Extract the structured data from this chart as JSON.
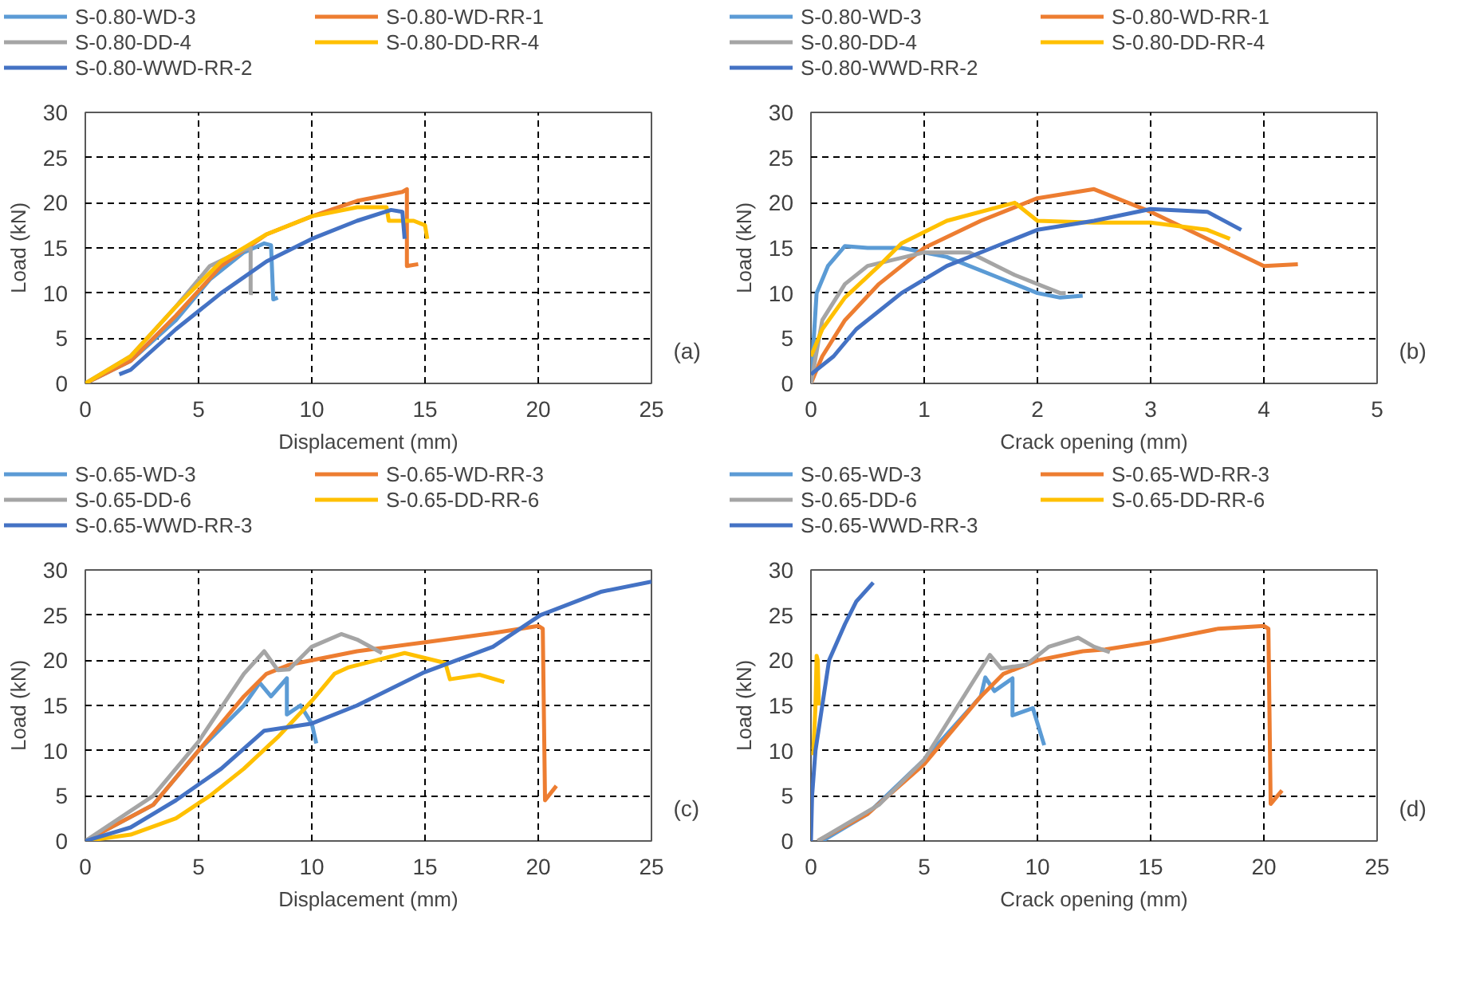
{
  "chart_data": [
    {
      "type": "line",
      "xlabel": "Displacement (mm)",
      "ylabel": "Load (kN)",
      "xlim": [
        0,
        25
      ],
      "ylim": [
        0,
        30
      ],
      "xticks": [
        0,
        5,
        10,
        15,
        20,
        25
      ],
      "yticks": [
        0,
        5,
        10,
        15,
        20,
        25,
        30
      ],
      "grid": true,
      "legend": "top",
      "annotations": [
        "(a)"
      ],
      "series": [
        {
          "name": "S-0.80-WD-3",
          "color": "#5b9bd5",
          "x": [
            0,
            2,
            4,
            5.5,
            7,
            7.9,
            8.2,
            8.3,
            8.5
          ],
          "values": [
            0,
            2.5,
            7,
            11.5,
            14.5,
            15.5,
            15.3,
            9.3,
            9.5
          ]
        },
        {
          "name": "S-0.80-WD-RR-1",
          "color": "#ed7d31",
          "x": [
            0,
            2,
            4,
            6,
            8,
            10,
            12,
            14,
            14.2,
            14.2,
            14.7
          ],
          "values": [
            0,
            2.5,
            7.5,
            13,
            16.5,
            18.5,
            20.2,
            21.2,
            21.5,
            13,
            13.2
          ]
        },
        {
          "name": "S-0.80-DD-4",
          "color": "#a5a5a5",
          "x": [
            0,
            2,
            4,
            5.5,
            7,
            7.3,
            7.3,
            7.4
          ],
          "values": [
            0,
            3,
            8.5,
            13,
            14.8,
            15,
            10,
            10
          ]
        },
        {
          "name": "S-0.80-DD-RR-4",
          "color": "#ffc000",
          "x": [
            0,
            2,
            4,
            6,
            8,
            10,
            12,
            13.3,
            13.4,
            14.5,
            15,
            15.1
          ],
          "values": [
            0,
            3,
            8.5,
            13.5,
            16.5,
            18.5,
            19.5,
            19.5,
            18,
            18,
            17.5,
            16
          ]
        },
        {
          "name": "S-0.80-WWD-RR-2",
          "color": "#4472c4",
          "x": [
            1.5,
            2,
            4,
            6,
            8,
            10,
            12,
            13.5,
            14,
            14.1
          ],
          "values": [
            1,
            1.5,
            6,
            10,
            13.5,
            16,
            18,
            19.2,
            19,
            16
          ]
        }
      ]
    },
    {
      "type": "line",
      "xlabel": "Crack opening (mm)",
      "ylabel": "Load (kN)",
      "xlim": [
        0,
        5
      ],
      "ylim": [
        0,
        30
      ],
      "xticks": [
        0,
        1,
        2,
        3,
        4,
        5
      ],
      "yticks": [
        0,
        5,
        10,
        15,
        20,
        25,
        30
      ],
      "grid": true,
      "legend": "top",
      "annotations": [
        "(b)"
      ],
      "series": [
        {
          "name": "S-0.80-WD-3",
          "color": "#5b9bd5",
          "x": [
            0,
            0.05,
            0.15,
            0.3,
            0.5,
            0.8,
            1.2,
            1.6,
            2,
            2.2,
            2.4
          ],
          "values": [
            0,
            10,
            13,
            15.2,
            15,
            15,
            14,
            12,
            10,
            9.5,
            9.7
          ]
        },
        {
          "name": "S-0.80-WD-RR-1",
          "color": "#ed7d31",
          "x": [
            0,
            0.1,
            0.3,
            0.6,
            1,
            1.5,
            2,
            2.5,
            3,
            3.5,
            4,
            4.3
          ],
          "values": [
            0,
            3,
            7,
            11,
            15,
            18,
            20.5,
            21.5,
            19,
            16,
            13,
            13.2
          ]
        },
        {
          "name": "S-0.80-DD-4",
          "color": "#a5a5a5",
          "x": [
            0,
            0.1,
            0.3,
            0.5,
            1,
            1.4,
            1.8,
            2.2,
            2.25
          ],
          "values": [
            0,
            7,
            11,
            13,
            14.5,
            14.5,
            12,
            10,
            10
          ]
        },
        {
          "name": "S-0.80-DD-RR-4",
          "color": "#ffc000",
          "x": [
            0,
            0.1,
            0.3,
            0.6,
            0.8,
            1.2,
            1.8,
            2,
            2.5,
            3,
            3.5,
            3.7
          ],
          "values": [
            3,
            6,
            9.5,
            13,
            15.5,
            18,
            20,
            18,
            17.8,
            17.8,
            17,
            16
          ]
        },
        {
          "name": "S-0.80-WWD-RR-2",
          "color": "#4472c4",
          "x": [
            0,
            0.2,
            0.4,
            0.8,
            1.2,
            1.6,
            2,
            2.5,
            3,
            3.5,
            3.8
          ],
          "values": [
            1,
            3,
            6,
            10,
            13,
            15,
            17,
            18,
            19.3,
            19,
            17
          ]
        }
      ]
    },
    {
      "type": "line",
      "xlabel": "Displacement (mm)",
      "ylabel": "Load (kN)",
      "xlim": [
        0,
        25
      ],
      "ylim": [
        0,
        30
      ],
      "xticks": [
        0,
        5,
        10,
        15,
        20,
        25
      ],
      "yticks": [
        0,
        5,
        10,
        15,
        20,
        25,
        30
      ],
      "grid": true,
      "legend": "top",
      "annotations": [
        "(c)"
      ],
      "series": [
        {
          "name": "S-0.65-WD-3",
          "color": "#5b9bd5",
          "x": [
            0,
            3,
            5,
            7,
            7.7,
            8.2,
            8.9,
            8.9,
            9.5,
            10,
            10.2
          ],
          "values": [
            0,
            4,
            10,
            15,
            17.5,
            16,
            18,
            14,
            15,
            13,
            10.8
          ]
        },
        {
          "name": "S-0.65-WD-RR-3",
          "color": "#ed7d31",
          "x": [
            0,
            3,
            5,
            7,
            8,
            9,
            12,
            15,
            18,
            20,
            20.2,
            20.3,
            20.8
          ],
          "values": [
            0,
            4,
            10,
            16,
            18.5,
            19.5,
            21,
            22,
            23,
            23.8,
            23.5,
            4.5,
            6.1
          ]
        },
        {
          "name": "S-0.65-DD-6",
          "color": "#a5a5a5",
          "x": [
            0,
            3,
            5,
            7,
            7.9,
            8.5,
            9,
            10,
            11.3,
            12,
            13.1
          ],
          "values": [
            0,
            5,
            11,
            18.5,
            21,
            18.9,
            19,
            21.5,
            22.9,
            22.3,
            20.8
          ]
        },
        {
          "name": "S-0.65-DD-RR-6",
          "color": "#ffc000",
          "x": [
            0,
            2,
            4,
            5.5,
            7,
            8.5,
            10,
            11,
            11.6,
            14.1,
            15.9,
            16.1,
            17.4,
            18.5
          ],
          "values": [
            0,
            0.7,
            2.5,
            5,
            8,
            11.5,
            15.5,
            18.5,
            19.2,
            20.8,
            19.7,
            17.9,
            18.4,
            17.6
          ]
        },
        {
          "name": "S-0.65-WWD-RR-3",
          "color": "#4472c4",
          "x": [
            0,
            2,
            4,
            6,
            7.9,
            10,
            12,
            14.9,
            18,
            20.1,
            22.8,
            25
          ],
          "values": [
            0,
            1.5,
            4.5,
            8,
            12.2,
            13,
            15,
            18.6,
            21.5,
            25,
            27.6,
            28.7
          ]
        }
      ]
    },
    {
      "type": "line",
      "xlabel": "Crack opening (mm)",
      "ylabel": "Load (kN)",
      "xlim": [
        0,
        25
      ],
      "ylim": [
        0,
        30
      ],
      "xticks": [
        0,
        5,
        10,
        15,
        20,
        25
      ],
      "yticks": [
        0,
        5,
        10,
        15,
        20,
        25,
        30
      ],
      "grid": true,
      "legend": "top",
      "annotations": [
        "(d)"
      ],
      "series": [
        {
          "name": "S-0.65-WD-3",
          "color": "#5b9bd5",
          "x": [
            0.5,
            2.5,
            5,
            7.5,
            7.7,
            8.1,
            8.9,
            8.9,
            9.8,
            10.3
          ],
          "values": [
            0,
            3,
            9,
            16,
            18.1,
            16.6,
            18,
            13.9,
            14.7,
            10.6
          ]
        },
        {
          "name": "S-0.65-WD-RR-3",
          "color": "#ed7d31",
          "x": [
            0.3,
            2.5,
            5,
            7.5,
            8.5,
            10,
            12,
            13,
            15,
            18,
            20,
            20.2,
            20.3,
            20.8
          ],
          "values": [
            0,
            3,
            8.5,
            16,
            18.5,
            20,
            21,
            21.2,
            22,
            23.5,
            23.8,
            23.5,
            4.1,
            5.6
          ]
        },
        {
          "name": "S-0.65-DD-6",
          "color": "#a5a5a5",
          "x": [
            0.3,
            3,
            5,
            7.9,
            8.4,
            9.5,
            10.5,
            11.8,
            12.5,
            13.2
          ],
          "values": [
            0,
            4,
            9,
            20.6,
            19.1,
            19.5,
            21.5,
            22.5,
            21.5,
            20.9
          ]
        },
        {
          "name": "S-0.65-DD-RR-6",
          "color": "#ffc000",
          "x": [
            0.1,
            0.2,
            0.25,
            0.3,
            0.35
          ],
          "values": [
            9.5,
            15,
            20.5,
            20,
            15
          ]
        },
        {
          "name": "S-0.65-WWD-RR-3",
          "color": "#4472c4",
          "x": [
            0,
            0.05,
            0.2,
            0.5,
            0.8,
            1.5,
            2,
            2.75
          ],
          "values": [
            0,
            5,
            10,
            15,
            20,
            24,
            26.5,
            28.6
          ]
        }
      ]
    }
  ]
}
